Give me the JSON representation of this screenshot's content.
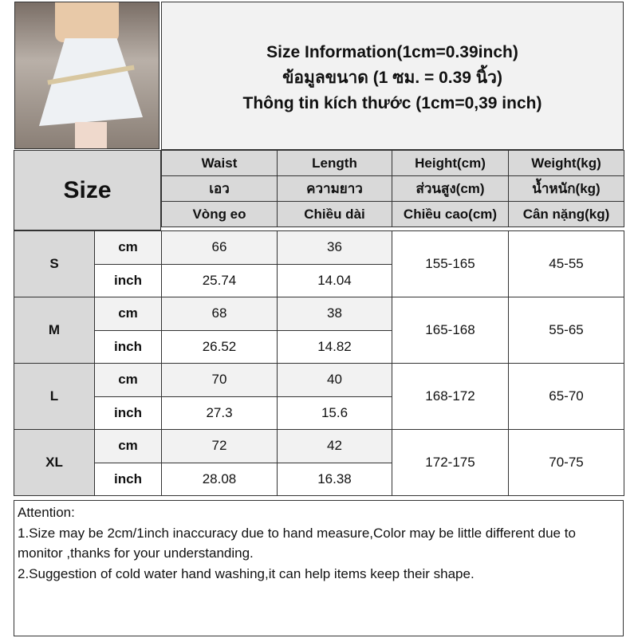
{
  "title_lines": [
    "Size Information(1cm=0.39inch)",
    "ข้อมูลขนาด (1 ซม. = 0.39 นิ้ว)",
    "Thông tin kích thước (1cm=0,39 inch)"
  ],
  "size_label": "Size",
  "columns": [
    {
      "en": "Waist",
      "th": "เอว",
      "vi": "Vòng eo"
    },
    {
      "en": "Length",
      "th": "ความยาว",
      "vi": "Chiều dài"
    },
    {
      "en": "Height(cm)",
      "th": "ส่วนสูง(cm)",
      "vi": "Chiều cao(cm)"
    },
    {
      "en": "Weight(kg)",
      "th": "น้ำหนัก(kg)",
      "vi": "Cân nặng(kg)"
    }
  ],
  "units": {
    "cm": "cm",
    "inch": "inch"
  },
  "rows": [
    {
      "size": "S",
      "cm": {
        "waist": "66",
        "length": "36"
      },
      "inch": {
        "waist": "25.74",
        "length": "14.04"
      },
      "height": "155-165",
      "weight": "45-55"
    },
    {
      "size": "M",
      "cm": {
        "waist": "68",
        "length": "38"
      },
      "inch": {
        "waist": "26.52",
        "length": "14.82"
      },
      "height": "165-168",
      "weight": "55-65"
    },
    {
      "size": "L",
      "cm": {
        "waist": "70",
        "length": "40"
      },
      "inch": {
        "waist": "27.3",
        "length": "15.6"
      },
      "height": "168-172",
      "weight": "65-70"
    },
    {
      "size": "XL",
      "cm": {
        "waist": "72",
        "length": "42"
      },
      "inch": {
        "waist": "28.08",
        "length": "16.38"
      },
      "height": "172-175",
      "weight": "70-75"
    }
  ],
  "attention": {
    "heading": "Attention:",
    "lines": [
      "1.Size may be 2cm/1inch inaccuracy due to hand measure,Color may be little different due to monitor ,thanks for your understanding.",
      "2.Suggestion of cold water hand washing,it can help items keep their shape."
    ]
  }
}
